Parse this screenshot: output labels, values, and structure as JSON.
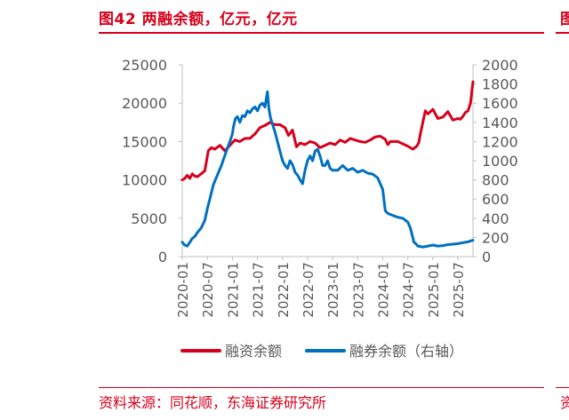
{
  "figure": {
    "title": "图42  两融余额，亿元，亿元",
    "title_right_fragment": "图",
    "source": "资料来源：同花顺，东海证券研究所",
    "source_right_fragment": "资"
  },
  "colors": {
    "red": "#d6001c",
    "blue": "#0070c0",
    "axis": "#bfbfbf",
    "text": "#595959"
  },
  "chart_data": {
    "type": "line",
    "x_tick_labels": [
      "2020-01",
      "2020-07",
      "2021-01",
      "2021-07",
      "2022-01",
      "2022-07",
      "2023-01",
      "2023-07",
      "2024-01",
      "2024-07",
      "2025-01",
      "2025-07"
    ],
    "x_range": [
      2020.0,
      2025.8
    ],
    "left_axis": {
      "ylim": [
        0,
        25000
      ],
      "ticks": [
        0,
        5000,
        10000,
        15000,
        20000,
        25000
      ]
    },
    "right_axis": {
      "ylim": [
        0,
        2000
      ],
      "ticks": [
        0,
        200,
        400,
        600,
        800,
        1000,
        1200,
        1400,
        1600,
        1800,
        2000
      ]
    },
    "series": [
      {
        "name": "融资余额",
        "axis": "left",
        "color": "#d6001c",
        "x": [
          2020.0,
          2020.05,
          2020.1,
          2020.15,
          2020.2,
          2020.25,
          2020.3,
          2020.38,
          2020.45,
          2020.52,
          2020.58,
          2020.65,
          2020.75,
          2020.85,
          2020.95,
          2021.05,
          2021.15,
          2021.25,
          2021.35,
          2021.45,
          2021.55,
          2021.65,
          2021.75,
          2021.85,
          2021.95,
          2022.05,
          2022.12,
          2022.2,
          2022.28,
          2022.35,
          2022.45,
          2022.55,
          2022.65,
          2022.75,
          2022.85,
          2022.95,
          2023.05,
          2023.15,
          2023.25,
          2023.35,
          2023.45,
          2023.55,
          2023.65,
          2023.75,
          2023.85,
          2023.95,
          2024.05,
          2024.1,
          2024.15,
          2024.2,
          2024.3,
          2024.4,
          2024.5,
          2024.6,
          2024.68,
          2024.72,
          2024.75,
          2024.8,
          2024.85,
          2024.9,
          2025.0,
          2025.1,
          2025.2,
          2025.3,
          2025.4,
          2025.5,
          2025.55,
          2025.6,
          2025.65,
          2025.7,
          2025.75,
          2025.8
        ],
        "values": [
          10000,
          10200,
          10600,
          10200,
          10800,
          10500,
          10400,
          10800,
          11200,
          13800,
          14200,
          14000,
          14500,
          13800,
          14500,
          15200,
          15000,
          15400,
          15400,
          16000,
          16800,
          17100,
          17500,
          17200,
          17200,
          16800,
          15800,
          16500,
          14300,
          14800,
          14600,
          15000,
          14800,
          14200,
          14500,
          14800,
          14600,
          15200,
          14900,
          15400,
          15200,
          15000,
          14900,
          15200,
          15600,
          15700,
          15300,
          14600,
          15000,
          15000,
          15000,
          14700,
          14400,
          14000,
          14400,
          14900,
          16000,
          17500,
          19000,
          18600,
          19200,
          18000,
          18200,
          18900,
          17800,
          18000,
          17900,
          18300,
          18800,
          19000,
          20000,
          22800
        ]
      },
      {
        "name": "融券余额（右轴）",
        "axis": "right",
        "color": "#0070c0",
        "x": [
          2020.0,
          2020.05,
          2020.1,
          2020.15,
          2020.2,
          2020.25,
          2020.3,
          2020.38,
          2020.45,
          2020.5,
          2020.55,
          2020.62,
          2020.7,
          2020.78,
          2020.88,
          2020.95,
          2021.0,
          2021.02,
          2021.06,
          2021.1,
          2021.15,
          2021.2,
          2021.25,
          2021.3,
          2021.35,
          2021.4,
          2021.45,
          2021.5,
          2021.55,
          2021.6,
          2021.65,
          2021.7,
          2021.73,
          2021.76,
          2021.8,
          2021.85,
          2021.9,
          2021.95,
          2022.0,
          2022.05,
          2022.1,
          2022.15,
          2022.2,
          2022.25,
          2022.3,
          2022.35,
          2022.4,
          2022.45,
          2022.5,
          2022.55,
          2022.6,
          2022.65,
          2022.7,
          2022.75,
          2022.8,
          2022.85,
          2022.9,
          2022.95,
          2023.0,
          2023.1,
          2023.2,
          2023.3,
          2023.4,
          2023.5,
          2023.6,
          2023.7,
          2023.8,
          2023.9,
          2024.0,
          2024.05,
          2024.1,
          2024.2,
          2024.3,
          2024.4,
          2024.45,
          2024.5,
          2024.55,
          2024.6,
          2024.62,
          2024.65,
          2024.7,
          2024.8,
          2024.9,
          2025.0,
          2025.1,
          2025.2,
          2025.3,
          2025.4,
          2025.5,
          2025.6,
          2025.7,
          2025.8
        ],
        "values": [
          150,
          120,
          110,
          150,
          190,
          210,
          250,
          300,
          380,
          500,
          600,
          750,
          850,
          950,
          1100,
          1200,
          1280,
          1350,
          1440,
          1460,
          1400,
          1470,
          1460,
          1520,
          1500,
          1540,
          1560,
          1520,
          1580,
          1600,
          1560,
          1720,
          1540,
          1450,
          1380,
          1300,
          1200,
          1100,
          1000,
          950,
          920,
          1000,
          960,
          880,
          850,
          800,
          760,
          900,
          1000,
          1050,
          1000,
          1100,
          1120,
          1050,
          950,
          950,
          1000,
          920,
          900,
          900,
          950,
          900,
          920,
          880,
          900,
          870,
          860,
          820,
          700,
          480,
          450,
          430,
          410,
          400,
          380,
          360,
          300,
          200,
          150,
          140,
          110,
          100,
          110,
          120,
          110,
          115,
          125,
          130,
          135,
          145,
          155,
          170
        ]
      }
    ]
  }
}
